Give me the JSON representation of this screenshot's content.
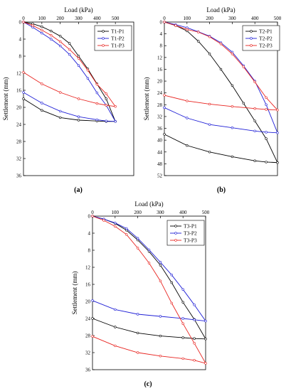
{
  "chart_data": [
    {
      "type": "line",
      "panel_label": "(a)",
      "xlabel": "Load (kPa)",
      "ylabel": "Settlement (mm)",
      "xlim": [
        0,
        600
      ],
      "ylim": [
        0,
        36
      ],
      "y_inverted": true,
      "x_axis_position": "top",
      "xticks": [
        0,
        100,
        200,
        300,
        400,
        500
      ],
      "yticks": [
        0,
        4,
        8,
        12,
        16,
        20,
        24,
        28,
        32,
        36
      ],
      "grid": false,
      "legend_position": "top-right",
      "series": [
        {
          "name": "T1-P1",
          "color": "#000000",
          "x": [
            0,
            50,
            100,
            150,
            200,
            250,
            300,
            350,
            400,
            450,
            500,
            450,
            400,
            300,
            200,
            100,
            0
          ],
          "y": [
            0,
            0.4,
            1.1,
            2.1,
            3.3,
            5.0,
            8.0,
            11.0,
            14.5,
            18.0,
            23.3,
            23.3,
            23.2,
            23.0,
            22.4,
            20.7,
            18.0
          ]
        },
        {
          "name": "T1-P2",
          "color": "#1f1fd6",
          "x": [
            0,
            50,
            100,
            150,
            200,
            250,
            300,
            350,
            400,
            450,
            500,
            450,
            400,
            300,
            200,
            100,
            0
          ],
          "y": [
            0,
            1.2,
            2.6,
            4.0,
            5.6,
            7.6,
            10.2,
            13.2,
            16.6,
            19.5,
            23.3,
            23.2,
            22.9,
            22.2,
            20.9,
            19.0,
            16.5
          ]
        },
        {
          "name": "T1-P3",
          "color": "#e8231f",
          "x": [
            0,
            50,
            100,
            150,
            200,
            250,
            300,
            350,
            400,
            450,
            500,
            450,
            400,
            300,
            200,
            100,
            0
          ],
          "y": [
            0,
            0.8,
            1.9,
            3.1,
            4.6,
            6.4,
            8.5,
            11.3,
            14.6,
            16.8,
            19.8,
            19.5,
            19.1,
            18.0,
            16.5,
            14.5,
            11.8
          ]
        }
      ]
    },
    {
      "type": "line",
      "panel_label": "(b)",
      "xlabel": "Load (kPa)",
      "ylabel": "Settlement (mm)",
      "xlim": [
        0,
        500
      ],
      "ylim": [
        0,
        52
      ],
      "y_inverted": true,
      "x_axis_position": "top",
      "xticks": [
        0,
        100,
        200,
        300,
        400,
        500
      ],
      "yticks": [
        0,
        4,
        8,
        12,
        16,
        20,
        24,
        28,
        32,
        36,
        40,
        44,
        48,
        52
      ],
      "grid": false,
      "legend_position": "top-right",
      "series": [
        {
          "name": "T2-P1",
          "color": "#000000",
          "x": [
            0,
            50,
            100,
            150,
            200,
            250,
            300,
            350,
            400,
            450,
            500,
            450,
            400,
            300,
            200,
            100,
            0
          ],
          "y": [
            0,
            1.2,
            3.0,
            6.5,
            10.8,
            16.0,
            21.5,
            27.5,
            33.5,
            39.5,
            47.6,
            47.4,
            47.0,
            45.6,
            44.0,
            41.8,
            38.0
          ]
        },
        {
          "name": "T2-P2",
          "color": "#1f1fd6",
          "x": [
            0,
            50,
            100,
            150,
            200,
            250,
            300,
            350,
            400,
            450,
            500,
            450,
            400,
            300,
            200,
            100,
            0
          ],
          "y": [
            0,
            0.9,
            1.9,
            3.3,
            4.8,
            7.0,
            10.2,
            14.8,
            20.0,
            28.0,
            37.5,
            37.3,
            36.9,
            35.8,
            34.7,
            32.5,
            29.0
          ]
        },
        {
          "name": "T2-P3",
          "color": "#e8231f",
          "x": [
            0,
            50,
            100,
            150,
            200,
            250,
            300,
            350,
            400,
            450,
            500,
            450,
            400,
            300,
            200,
            100,
            0
          ],
          "y": [
            0,
            1.2,
            2.5,
            3.4,
            5.0,
            7.4,
            10.8,
            15.2,
            20.3,
            25.6,
            29.8,
            29.6,
            29.3,
            28.6,
            27.8,
            26.7,
            24.8
          ]
        }
      ]
    },
    {
      "type": "line",
      "panel_label": "(c)",
      "xlabel": "Load (kPa)",
      "ylabel": "Settlement (mm)",
      "xlim": [
        0,
        500
      ],
      "ylim": [
        0,
        36
      ],
      "y_inverted": true,
      "x_axis_position": "top",
      "xticks": [
        0,
        100,
        200,
        300,
        400,
        500
      ],
      "yticks": [
        0,
        4,
        8,
        12,
        16,
        20,
        24,
        28,
        32,
        36
      ],
      "grid": false,
      "legend_position": "top-right",
      "series": [
        {
          "name": "T3-P1",
          "color": "#000000",
          "x": [
            0,
            50,
            100,
            150,
            200,
            250,
            300,
            350,
            400,
            450,
            500,
            450,
            400,
            300,
            200,
            100,
            0
          ],
          "y": [
            0,
            0.7,
            1.7,
            3.3,
            5.6,
            8.3,
            11.5,
            15.6,
            20.2,
            24.2,
            28.8,
            28.7,
            28.5,
            28.1,
            27.4,
            26.0,
            24.0
          ]
        },
        {
          "name": "T3-P2",
          "color": "#1f1fd6",
          "x": [
            0,
            50,
            100,
            150,
            200,
            250,
            300,
            350,
            400,
            450,
            500,
            450,
            400,
            300,
            200,
            100,
            0
          ],
          "y": [
            0,
            0.7,
            1.6,
            2.9,
            5.2,
            7.9,
            10.8,
            13.8,
            17.2,
            20.8,
            24.6,
            24.3,
            24.0,
            23.5,
            23.0,
            21.9,
            19.8
          ]
        },
        {
          "name": "T3-P3",
          "color": "#e8231f",
          "x": [
            0,
            50,
            100,
            150,
            200,
            250,
            300,
            350,
            400,
            450,
            500,
            450,
            400,
            300,
            200,
            100,
            0
          ],
          "y": [
            0,
            1.0,
            2.4,
            4.3,
            7.5,
            11.0,
            15.2,
            20.4,
            25.2,
            29.8,
            34.5,
            33.8,
            33.4,
            32.8,
            32.0,
            30.4,
            28.2
          ]
        }
      ]
    }
  ]
}
